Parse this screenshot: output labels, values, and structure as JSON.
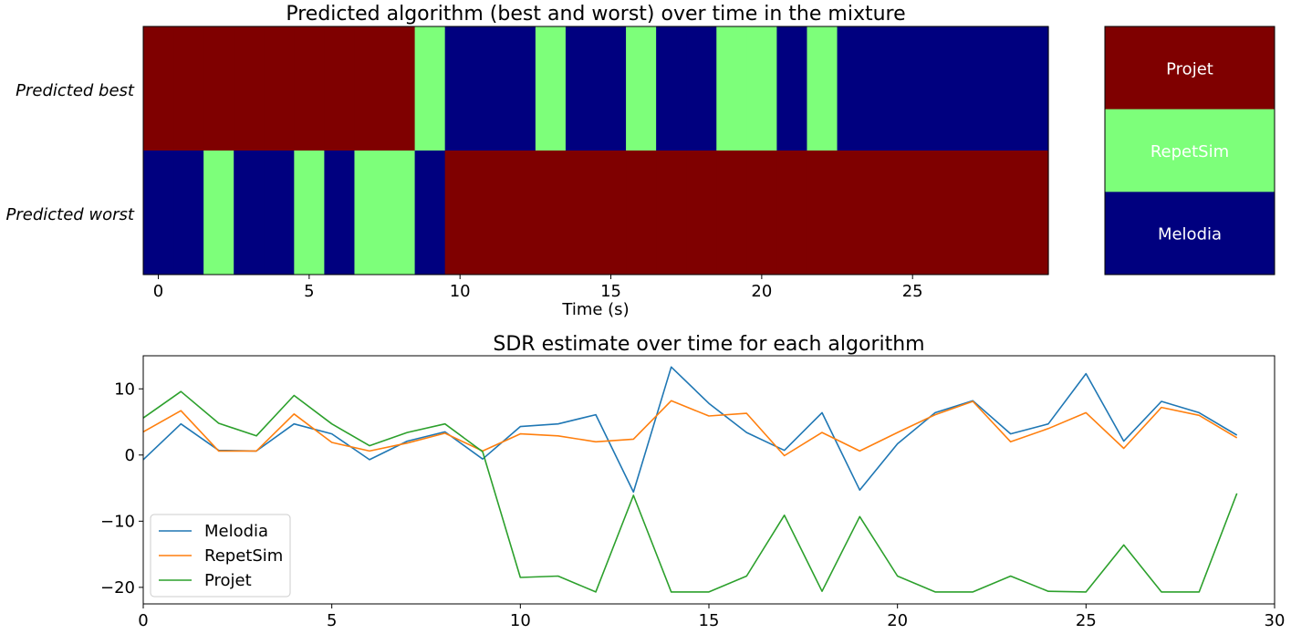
{
  "colors": {
    "Projet": "#7f0000",
    "RepetSim": "#7dff7a",
    "Melodia": "#00007f",
    "line_melodia": "#1f77b4",
    "line_repetsim": "#ff7f0e",
    "line_projet": "#2ca02c"
  },
  "chart_data": [
    {
      "type": "heatmap",
      "title": "Predicted algorithm (best and worst) over time in the mixture",
      "xlabel": "Time (s)",
      "rows": [
        "Predicted best",
        "Predicted worst"
      ],
      "xlim": [
        -0.5,
        29.5
      ],
      "xticks": [
        0,
        5,
        10,
        15,
        20,
        25
      ],
      "best": [
        "Projet",
        "Projet",
        "Projet",
        "Projet",
        "Projet",
        "Projet",
        "Projet",
        "Projet",
        "Projet",
        "RepetSim",
        "Melodia",
        "Melodia",
        "Melodia",
        "RepetSim",
        "Melodia",
        "Melodia",
        "RepetSim",
        "Melodia",
        "Melodia",
        "RepetSim",
        "RepetSim",
        "Melodia",
        "RepetSim",
        "Melodia",
        "Melodia",
        "Melodia",
        "Melodia",
        "Melodia",
        "Melodia",
        "Melodia"
      ],
      "worst": [
        "Melodia",
        "Melodia",
        "RepetSim",
        "Melodia",
        "Melodia",
        "RepetSim",
        "Melodia",
        "RepetSim",
        "RepetSim",
        "Melodia",
        "Projet",
        "Projet",
        "Projet",
        "Projet",
        "Projet",
        "Projet",
        "Projet",
        "Projet",
        "Projet",
        "Projet",
        "Projet",
        "Projet",
        "Projet",
        "Projet",
        "Projet",
        "Projet",
        "Projet",
        "Projet",
        "Projet",
        "Projet"
      ],
      "key": [
        "Projet",
        "RepetSim",
        "Melodia"
      ]
    },
    {
      "type": "line",
      "title": "SDR estimate over time for each algorithm",
      "xlim": [
        0,
        30
      ],
      "ylim": [
        -22.5,
        15
      ],
      "xticks": [
        0,
        5,
        10,
        15,
        20,
        25,
        30
      ],
      "yticks": [
        -20,
        -10,
        0,
        10
      ],
      "ytick_labels": [
        "−20",
        "−10",
        "0",
        "10"
      ],
      "x": [
        0,
        1,
        2,
        3,
        4,
        5,
        6,
        7,
        8,
        9,
        10,
        11,
        12,
        13,
        14,
        15,
        16,
        17,
        18,
        19,
        20,
        21,
        22,
        23,
        24,
        25,
        26,
        27,
        28,
        29
      ],
      "legend_placement": "lower-left",
      "series": [
        {
          "name": "Melodia",
          "values": [
            -0.7,
            4.7,
            0.7,
            0.6,
            4.7,
            3.2,
            -0.7,
            2.1,
            3.5,
            -0.6,
            4.3,
            4.7,
            6.1,
            -5.6,
            13.3,
            7.8,
            3.4,
            0.7,
            6.4,
            -5.3,
            1.7,
            6.4,
            8.2,
            3.2,
            4.7,
            12.3,
            2.1,
            8.1,
            6.4,
            3.0
          ]
        },
        {
          "name": "RepetSim",
          "values": [
            3.5,
            6.7,
            0.6,
            0.6,
            6.2,
            1.9,
            0.6,
            1.8,
            3.3,
            0.6,
            3.2,
            2.9,
            2.0,
            2.4,
            8.2,
            5.9,
            6.3,
            -0.1,
            3.4,
            0.6,
            3.4,
            6.1,
            8.1,
            2.0,
            4.0,
            6.4,
            1.0,
            7.2,
            6.0,
            2.6
          ]
        },
        {
          "name": "Projet",
          "values": [
            5.6,
            9.6,
            4.8,
            2.9,
            9.0,
            4.7,
            1.4,
            3.4,
            4.7,
            0.5,
            -18.5,
            -18.3,
            -20.7,
            -6.1,
            -20.7,
            -20.7,
            -18.3,
            -9.1,
            -20.6,
            -9.3,
            -18.3,
            -20.7,
            -20.7,
            -18.3,
            -20.6,
            -20.7,
            -13.6,
            -20.7,
            -20.7,
            -5.8
          ]
        }
      ]
    }
  ]
}
